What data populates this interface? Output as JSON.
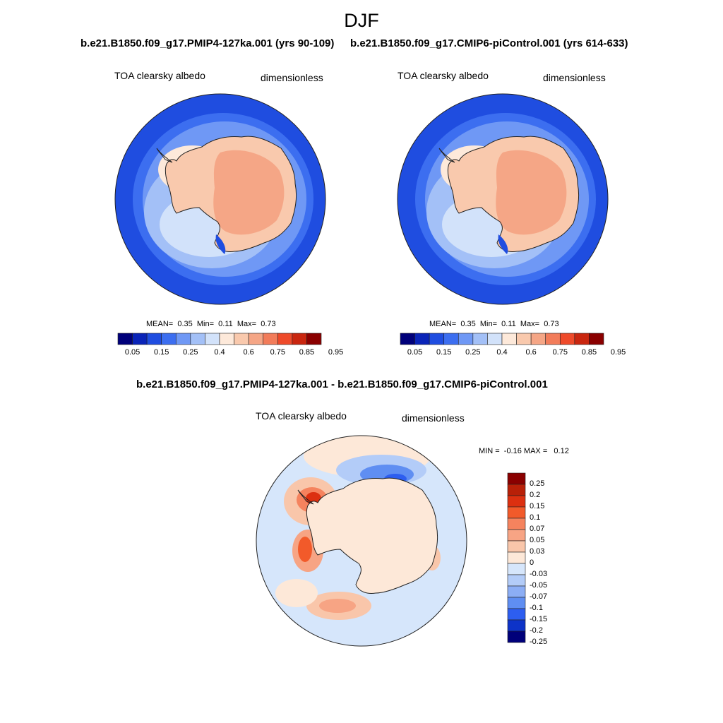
{
  "figure": {
    "title": "DJF"
  },
  "panels": [
    {
      "title": "b.e21.B1850.f09_g17.PMIP4-127ka.001 (yrs 90-109)",
      "variable": "TOA clearsky albedo",
      "units": "dimensionless",
      "stats": {
        "mean_label": "MEAN=",
        "mean": "0.35",
        "min_label": "Min=",
        "min": "0.11",
        "max_label": "Max=",
        "max": "0.73"
      },
      "colorbar_ticks": [
        "0.05",
        "0.15",
        "0.25",
        "0.4",
        "0.6",
        "0.75",
        "0.85",
        "0.95"
      ]
    },
    {
      "title": "b.e21.B1850.f09_g17.CMIP6-piControl.001 (yrs 614-633)",
      "variable": "TOA clearsky albedo",
      "units": "dimensionless",
      "stats": {
        "mean_label": "MEAN=",
        "mean": "0.35",
        "min_label": "Min=",
        "min": "0.11",
        "max_label": "Max=",
        "max": "0.73"
      },
      "colorbar_ticks": [
        "0.05",
        "0.15",
        "0.25",
        "0.4",
        "0.6",
        "0.75",
        "0.85",
        "0.95"
      ]
    },
    {
      "title": "b.e21.B1850.f09_g17.PMIP4-127ka.001 - b.e21.B1850.f09_g17.CMIP6-piControl.001",
      "variable": "TOA clearsky albedo",
      "units": "dimensionless",
      "stats": {
        "min_label": "MIN =",
        "min": "-0.16",
        "max_label": "MAX =",
        "max": "0.12"
      },
      "colorbar_ticks": [
        "0.25",
        "0.2",
        "0.15",
        "0.1",
        "0.07",
        "0.05",
        "0.03",
        "0",
        "-0.03",
        "-0.05",
        "-0.07",
        "-0.1",
        "-0.15",
        "-0.2",
        "-0.25"
      ]
    }
  ],
  "colors": {
    "seq": [
      "#00007a",
      "#0a24b8",
      "#1f4de0",
      "#3c6ef0",
      "#6f98f5",
      "#a3c0f7",
      "#d2e2fa",
      "#fde9da",
      "#f9c9ad",
      "#f5a686",
      "#f27c5a",
      "#ee4a2a",
      "#c9260f",
      "#8a0000"
    ],
    "div": [
      "#8a0000",
      "#b82008",
      "#dc3010",
      "#f25a2a",
      "#f5835e",
      "#f7a484",
      "#f9c6aa",
      "#fde8d8",
      "#d6e6fb",
      "#b3ccf8",
      "#8caef5",
      "#5f8ef2",
      "#2d5ef0",
      "#0d33c8",
      "#00007a"
    ]
  }
}
